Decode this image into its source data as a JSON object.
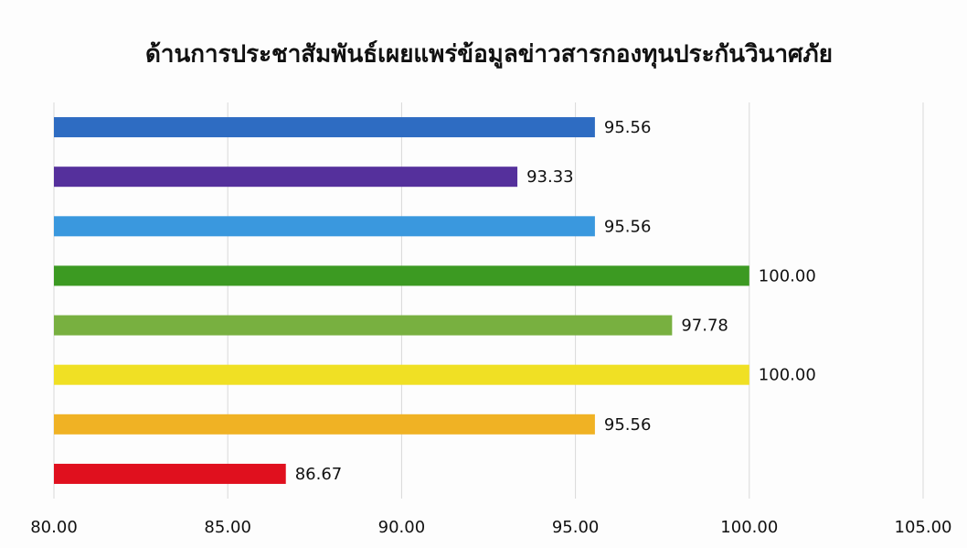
{
  "chart_data": {
    "type": "bar",
    "orientation": "horizontal",
    "title": "ด้านการประชาสัมพันธ์เผยแพร่ข้อมูลข่าวสารกองทุนประกันวินาศภัย",
    "categories": [
      null,
      null,
      null,
      null,
      null,
      null,
      null,
      null
    ],
    "values": [
      95.56,
      93.33,
      95.56,
      100,
      97.78,
      100,
      95.56,
      86.67
    ],
    "value_labels": [
      "95.56",
      "93.33",
      "95.56",
      "100.00",
      "97.78",
      "100.00",
      "95.56",
      "86.67"
    ],
    "colors": [
      "#2e6cc2",
      "#55309c",
      "#3a98de",
      "#3c9a22",
      "#78b040",
      "#f0e024",
      "#f0b224",
      "#e0101e"
    ],
    "xlim": [
      80,
      105
    ],
    "xticks": [
      {
        "value": 80,
        "label": "80.00"
      },
      {
        "value": 85,
        "label": "85.00"
      },
      {
        "value": 90,
        "label": "90.00"
      },
      {
        "value": 95,
        "label": "95.00"
      },
      {
        "value": 100,
        "label": "100.00"
      },
      {
        "value": 105,
        "label": "105.00"
      }
    ],
    "grid": true
  }
}
